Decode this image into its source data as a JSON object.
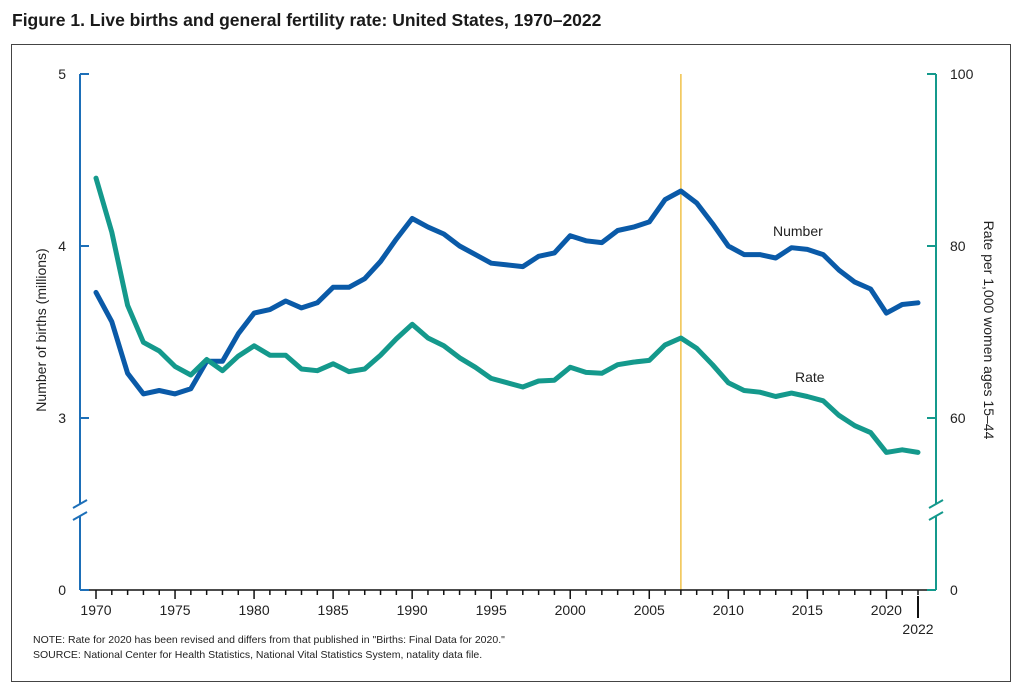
{
  "figure_title": "Figure 1. Live births and general fertility rate: United States, 1970–2022",
  "note": "NOTE: Rate for 2020 has been revised and differs from that published in \"Births: Final Data for 2020.\"",
  "source": "SOURCE: National Center for Health Statistics, National Vital Statistics System, natality data file.",
  "colors": {
    "number": "#0a5aa8",
    "rate": "#14998c",
    "marker": "#f0c24a",
    "axis_left": "#1d6fb8",
    "axis_right": "#14998c"
  },
  "chart_data": {
    "type": "line",
    "title": "Live births and general fertility rate: United States, 1970–2022",
    "x_range": [
      1970,
      2022
    ],
    "x_ticks": [
      "1970",
      "1975",
      "1980",
      "1985",
      "1990",
      "1995",
      "2000",
      "2005",
      "2010",
      "2015",
      "2020"
    ],
    "x_last_tick": "2022",
    "left_axis": {
      "label": "Number of births (millions)",
      "ticks": [
        "0",
        "3",
        "4",
        "5"
      ],
      "range_broken": [
        3,
        5
      ]
    },
    "right_axis": {
      "label": "Rate per 1,000 women ages 15–44",
      "ticks": [
        "0",
        "60",
        "80",
        "100"
      ],
      "range_broken": [
        60,
        100
      ]
    },
    "vertical_marker_year": 2007,
    "x": [
      1970,
      1971,
      1972,
      1973,
      1974,
      1975,
      1976,
      1977,
      1978,
      1979,
      1980,
      1981,
      1982,
      1983,
      1984,
      1985,
      1986,
      1987,
      1988,
      1989,
      1990,
      1991,
      1992,
      1993,
      1994,
      1995,
      1996,
      1997,
      1998,
      1999,
      2000,
      2001,
      2002,
      2003,
      2004,
      2005,
      2006,
      2007,
      2008,
      2009,
      2010,
      2011,
      2012,
      2013,
      2014,
      2015,
      2016,
      2017,
      2018,
      2019,
      2020,
      2021,
      2022
    ],
    "series": [
      {
        "name": "Number",
        "axis": "left",
        "values": [
          3.73,
          3.56,
          3.26,
          3.14,
          3.16,
          3.14,
          3.17,
          3.33,
          3.33,
          3.49,
          3.61,
          3.63,
          3.68,
          3.64,
          3.67,
          3.76,
          3.76,
          3.81,
          3.91,
          4.04,
          4.16,
          4.11,
          4.07,
          4.0,
          3.95,
          3.9,
          3.89,
          3.88,
          3.94,
          3.96,
          4.06,
          4.03,
          4.02,
          4.09,
          4.11,
          4.14,
          4.27,
          4.32,
          4.25,
          4.13,
          4.0,
          3.95,
          3.95,
          3.93,
          3.99,
          3.98,
          3.95,
          3.86,
          3.79,
          3.75,
          3.61,
          3.66,
          3.67
        ]
      },
      {
        "name": "Rate",
        "axis": "right",
        "values": [
          87.9,
          81.6,
          73.1,
          68.8,
          67.8,
          66.0,
          65.0,
          66.8,
          65.5,
          67.2,
          68.4,
          67.3,
          67.3,
          65.7,
          65.5,
          66.3,
          65.4,
          65.7,
          67.3,
          69.2,
          70.9,
          69.3,
          68.4,
          67.0,
          65.9,
          64.6,
          64.1,
          63.6,
          64.3,
          64.4,
          65.9,
          65.3,
          65.2,
          66.2,
          66.5,
          66.7,
          68.5,
          69.3,
          68.1,
          66.2,
          64.1,
          63.2,
          63.0,
          62.5,
          62.9,
          62.5,
          62.0,
          60.3,
          59.1,
          58.3,
          56.0,
          56.3,
          56.0
        ]
      }
    ],
    "series_labels": {
      "number": "Number",
      "rate": "Rate"
    }
  }
}
